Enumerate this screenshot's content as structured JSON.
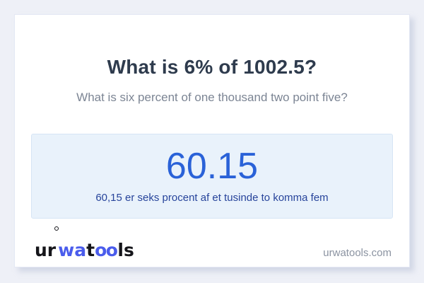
{
  "page": {
    "background_color": "#eef0f7",
    "card_background": "#ffffff"
  },
  "card": {
    "title": "What is 6% of 1002.5?",
    "subtitle": "What is six percent of one thousand two point five?"
  },
  "result": {
    "value": "60.15",
    "sentence": "60,15 er seks procent af et tusinde to komma fem",
    "value_color": "#2a62d8",
    "sentence_color": "#27449b",
    "box_background": "#e9f2fb",
    "box_border": "#d6e5f5"
  },
  "footer": {
    "logo": {
      "segments": {
        "s1": "ur",
        "s2": "wa",
        "s3": "t",
        "s4": "oo",
        "s5": "ls"
      },
      "accent_color": "#4a5cec",
      "text_color": "#15151a"
    },
    "domain": "urwatools.com"
  }
}
